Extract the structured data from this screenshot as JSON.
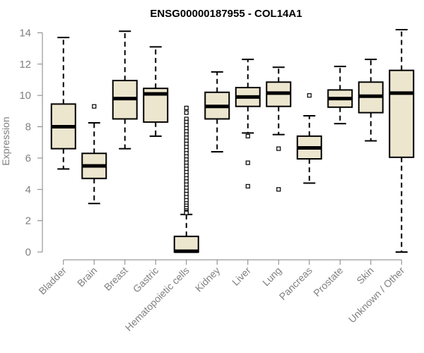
{
  "chart_data": {
    "type": "boxplot",
    "title": "ENSG00000187955 - COL14A1",
    "xlabel": "",
    "ylabel": "Expression",
    "ylim": [
      0,
      14.2
    ],
    "yticks": [
      0,
      2,
      4,
      6,
      8,
      10,
      12,
      14
    ],
    "grid": false,
    "box_fill": "#ede6cf",
    "box_stroke": "#000000",
    "axis_color": "#808080",
    "categories": [
      "Bladder",
      "Brain",
      "Breast",
      "Gastric",
      "Hematopoietic cells",
      "Kidney",
      "Liver",
      "Lung",
      "Pancreas",
      "Prostate",
      "Skin",
      "Unknown / Other"
    ],
    "boxes": [
      {
        "category": "Bladder",
        "whisker_low": 5.3,
        "q1": 6.6,
        "median": 8.0,
        "q3": 9.45,
        "whisker_high": 13.7,
        "outliers": []
      },
      {
        "category": "Brain",
        "whisker_low": 3.1,
        "q1": 4.7,
        "median": 5.5,
        "q3": 6.3,
        "whisker_high": 8.25,
        "outliers": [
          9.3
        ]
      },
      {
        "category": "Breast",
        "whisker_low": 6.6,
        "q1": 8.5,
        "median": 9.8,
        "q3": 10.95,
        "whisker_high": 14.1,
        "outliers": []
      },
      {
        "category": "Gastric",
        "whisker_low": 7.4,
        "q1": 8.3,
        "median": 10.1,
        "q3": 10.45,
        "whisker_high": 13.1,
        "outliers": []
      },
      {
        "category": "Hematopoietic cells",
        "whisker_low": 0.0,
        "q1": 0.0,
        "median": 0.05,
        "q3": 1.0,
        "whisker_high": 2.4,
        "outliers": [
          9.2,
          8.9,
          8.5,
          8.3,
          8.1,
          7.9,
          7.7,
          7.5,
          7.3,
          7.1,
          6.9,
          6.7,
          6.5,
          6.3,
          6.1,
          5.9,
          5.7,
          5.5,
          5.3,
          5.1,
          4.9,
          4.7,
          4.5,
          4.3,
          4.1,
          3.9,
          3.7,
          3.5,
          3.3,
          3.1,
          2.95,
          2.8,
          2.65,
          2.55,
          2.5
        ]
      },
      {
        "category": "Kidney",
        "whisker_low": 6.4,
        "q1": 8.5,
        "median": 9.3,
        "q3": 10.2,
        "whisker_high": 11.5,
        "outliers": []
      },
      {
        "category": "Liver",
        "whisker_low": 7.6,
        "q1": 9.3,
        "median": 9.9,
        "q3": 10.5,
        "whisker_high": 12.3,
        "outliers": [
          7.4,
          5.7,
          4.2
        ]
      },
      {
        "category": "Lung",
        "whisker_low": 7.5,
        "q1": 9.3,
        "median": 10.15,
        "q3": 10.85,
        "whisker_high": 11.8,
        "outliers": [
          6.6,
          4.0
        ]
      },
      {
        "category": "Pancreas",
        "whisker_low": 4.4,
        "q1": 5.95,
        "median": 6.65,
        "q3": 7.4,
        "whisker_high": 8.7,
        "outliers": [
          10.0
        ]
      },
      {
        "category": "Prostate",
        "whisker_low": 8.2,
        "q1": 9.25,
        "median": 9.8,
        "q3": 10.35,
        "whisker_high": 11.85,
        "outliers": []
      },
      {
        "category": "Skin",
        "whisker_low": 7.1,
        "q1": 8.9,
        "median": 9.95,
        "q3": 10.85,
        "whisker_high": 12.3,
        "outliers": []
      },
      {
        "category": "Unknown / Other",
        "whisker_low": 0.0,
        "q1": 6.05,
        "median": 10.15,
        "q3": 11.6,
        "whisker_high": 14.2,
        "outliers": []
      }
    ]
  }
}
